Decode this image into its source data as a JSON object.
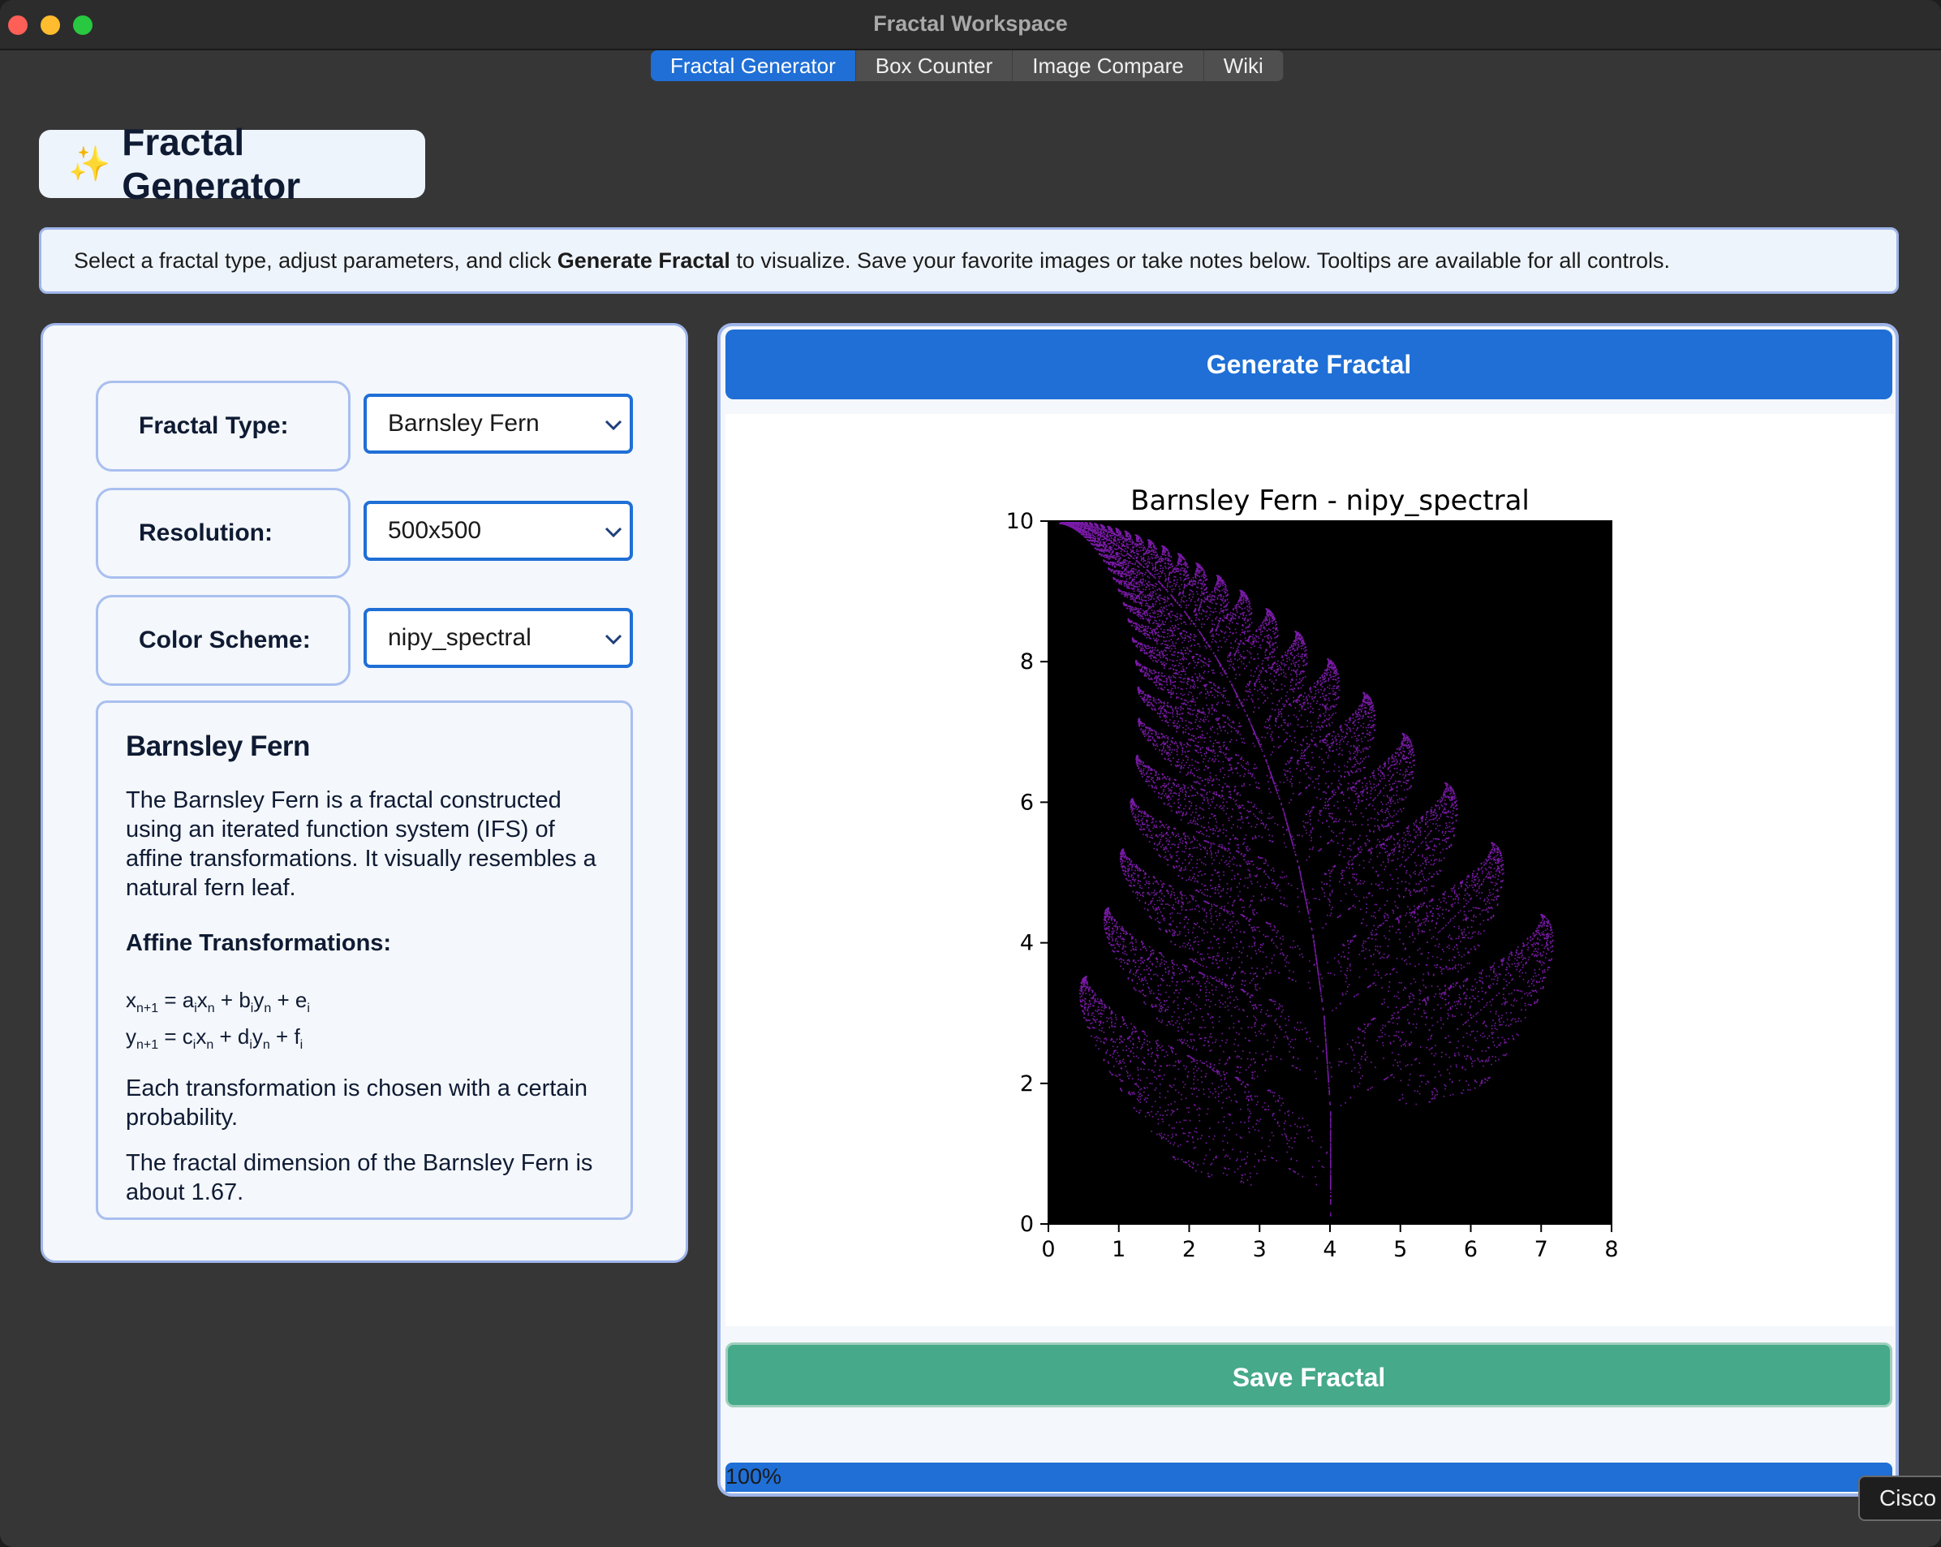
{
  "window": {
    "title": "Fractal Workspace"
  },
  "tabs": [
    "Fractal Generator",
    "Box Counter",
    "Image Compare",
    "Wiki"
  ],
  "header": {
    "icon": "sparkles-icon",
    "title": "Fractal Generator"
  },
  "instructions": {
    "before": "Select a fractal type, adjust parameters, and click ",
    "bold": "Generate Fractal",
    "after": " to visualize. Save your favorite images or take notes below. Tooltips are available for all controls."
  },
  "controls": {
    "fractal_type": {
      "label": "Fractal Type:",
      "value": "Barnsley Fern"
    },
    "resolution": {
      "label": "Resolution:",
      "value": "500x500"
    },
    "color_scheme": {
      "label": "Color Scheme:",
      "value": "nipy_spectral"
    }
  },
  "info": {
    "title": "Barnsley Fern",
    "description": "The Barnsley Fern is a fractal constructed using an iterated function system (IFS) of affine transformations. It visually resembles a natural fern leaf.",
    "transform_heading": "Affine Transformations:",
    "probability_note": "Each transformation is chosen with a certain probability.",
    "dimension_note": "The fractal dimension of the Barnsley Fern is about 1.67."
  },
  "buttons": {
    "generate": "Generate Fractal",
    "save": "Save Fractal"
  },
  "progress": {
    "value": 100,
    "label": "100%"
  },
  "overlay": {
    "label": "Cisco"
  },
  "colors": {
    "accent": "#1f6fd6",
    "save": "#45a98a",
    "border": "#9fb5ea",
    "fern": "#7a1aa8"
  },
  "chart_data": {
    "type": "scatter",
    "title": "Barnsley Fern - nipy_spectral",
    "xlabel": "",
    "ylabel": "",
    "xlim": [
      0,
      8
    ],
    "ylim": [
      0,
      10
    ],
    "xticks": [
      0,
      1,
      2,
      3,
      4,
      5,
      6,
      7,
      8
    ],
    "yticks": [
      0,
      2,
      4,
      6,
      8,
      10
    ],
    "background": "#000000",
    "colormap": "nipy_spectral"
  }
}
